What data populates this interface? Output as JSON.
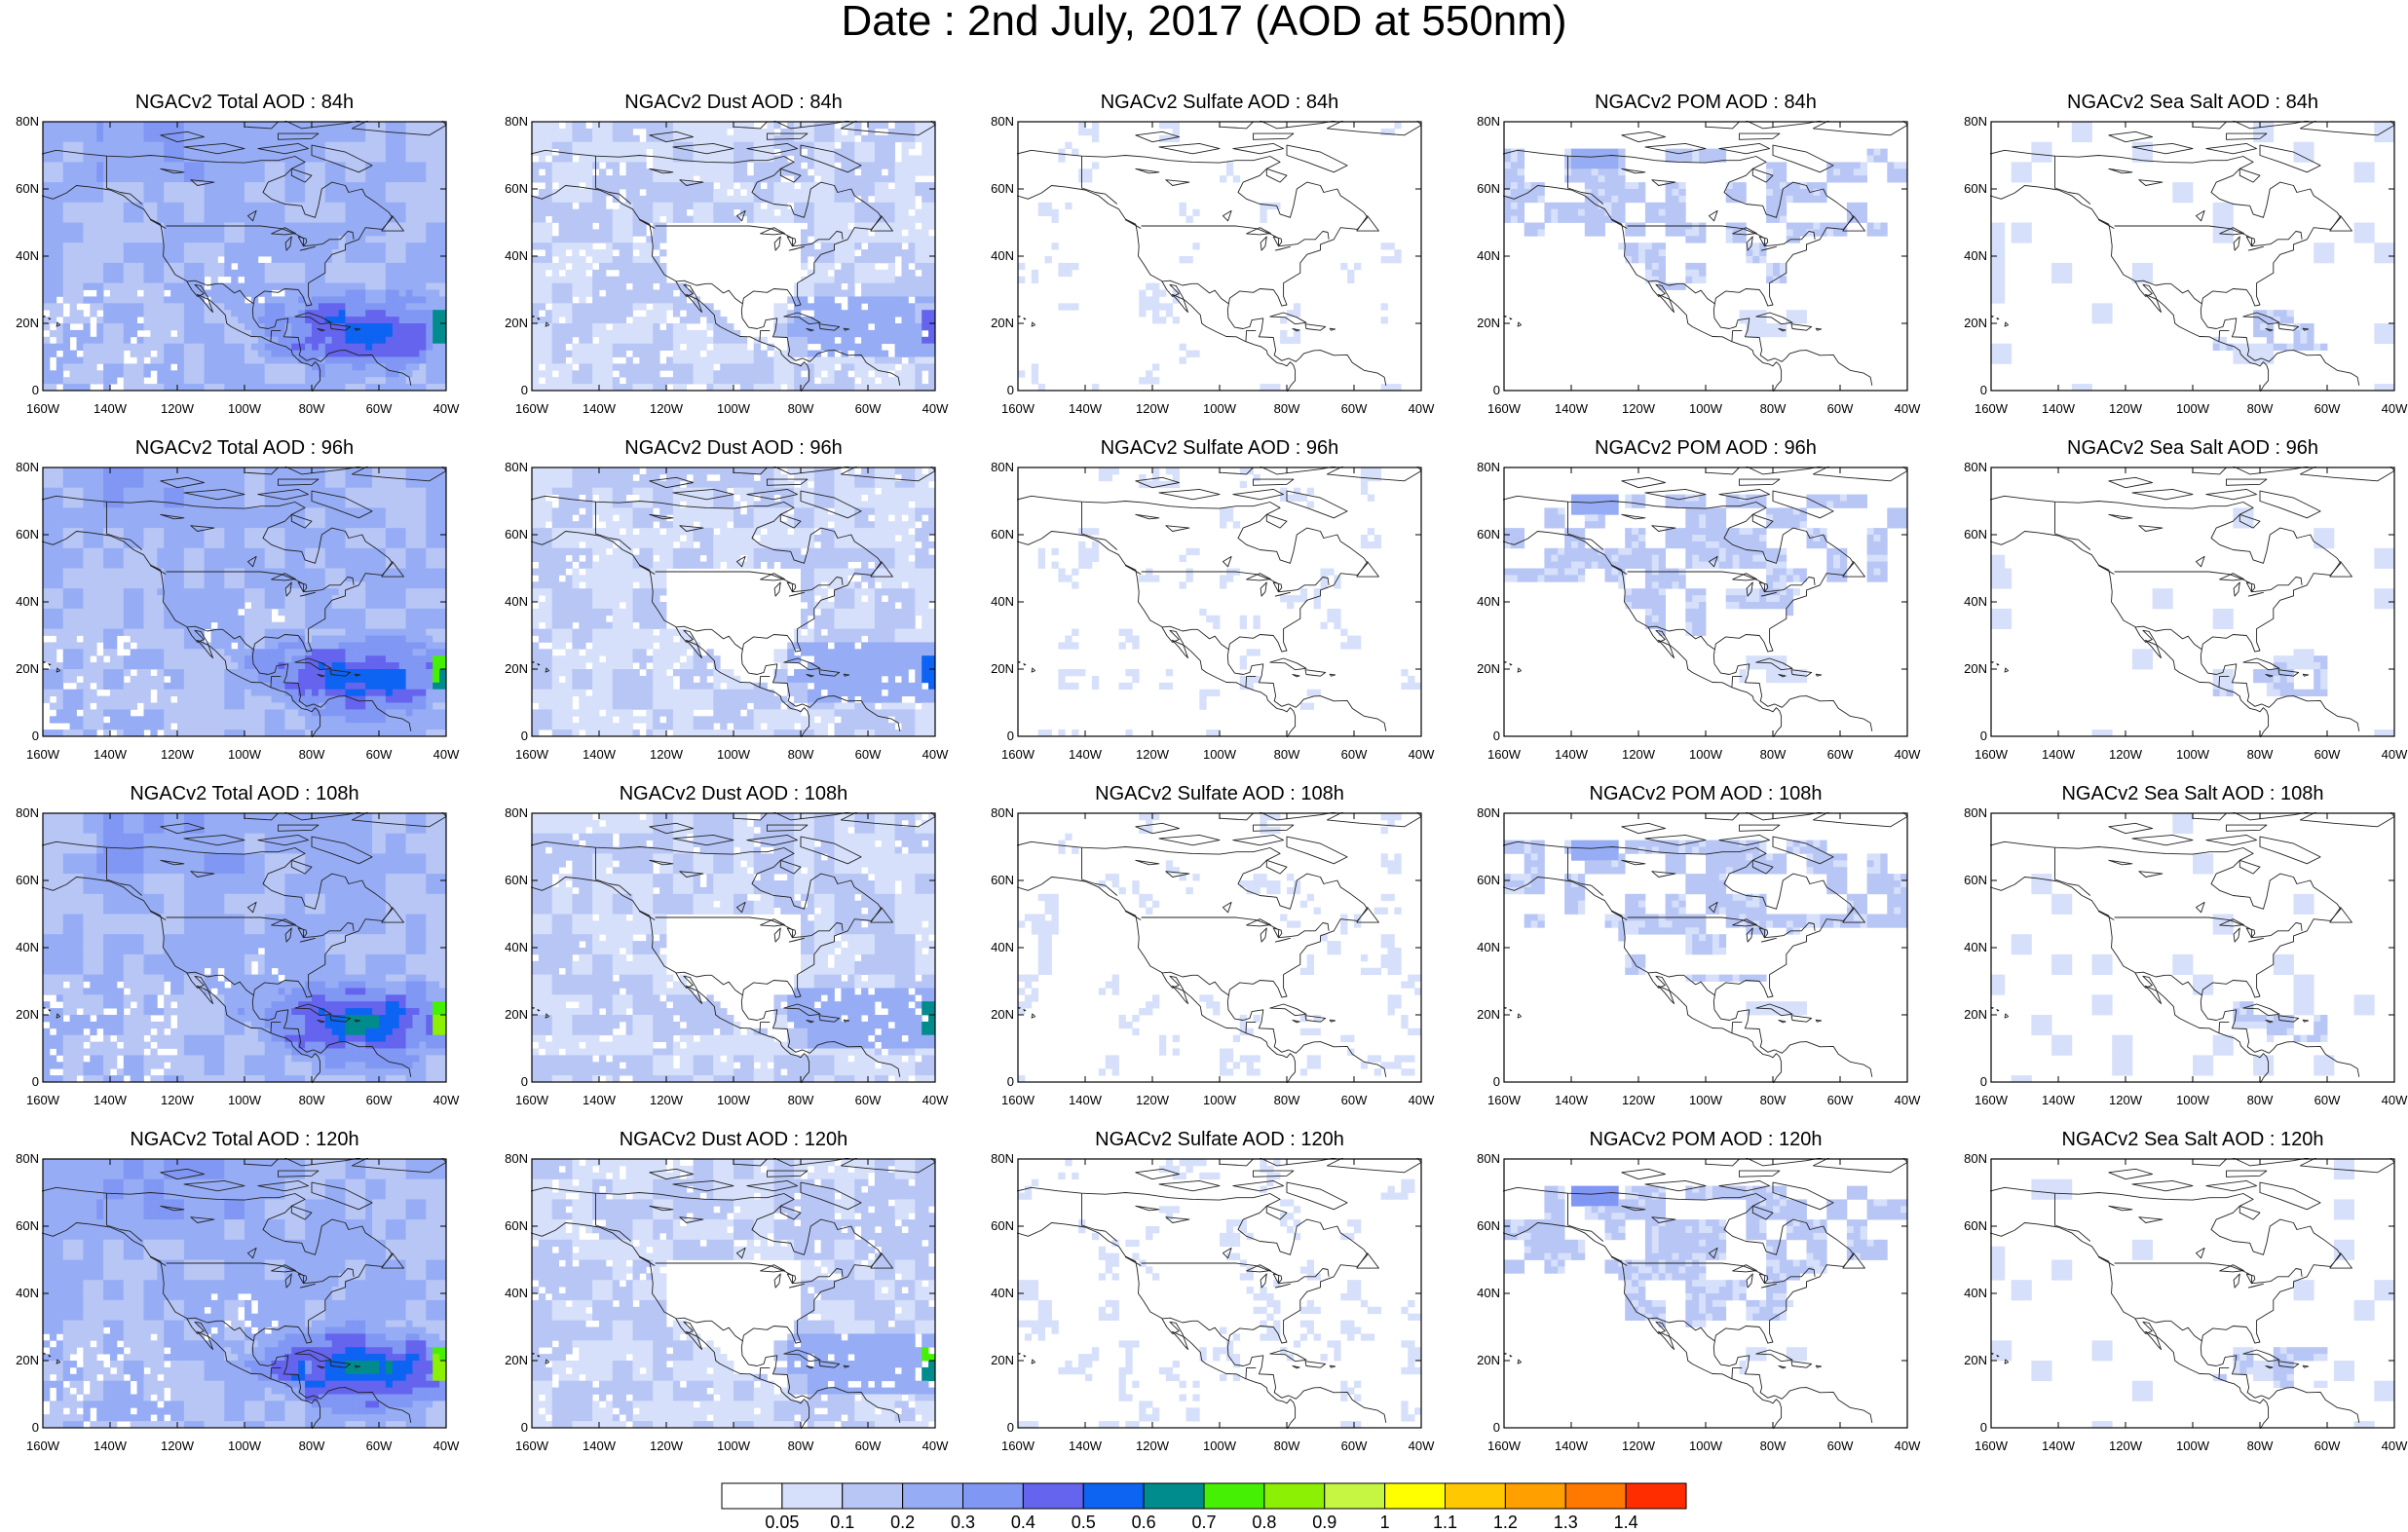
{
  "title": "Date : 2nd July, 2017 (AOD at 550nm)",
  "lat_labels": [
    "80N",
    "60N",
    "40N",
    "20N",
    "0"
  ],
  "lon_labels": [
    "160W",
    "140W",
    "120W",
    "100W",
    "80W",
    "60W",
    "40W"
  ],
  "panels": [
    {
      "title": "NGACv2 Total AOD : 84h",
      "type": "total",
      "level": 0.6
    },
    {
      "title": "NGACv2 Dust AOD : 84h",
      "type": "dust",
      "level": 0.5
    },
    {
      "title": "NGACv2 Sulfate AOD : 84h",
      "type": "sulfate",
      "level": 0.0
    },
    {
      "title": "NGACv2 POM AOD : 84h",
      "type": "pom",
      "level": 0.2
    },
    {
      "title": "NGACv2 Sea Salt AOD : 84h",
      "type": "seasalt",
      "level": 0.1
    },
    {
      "title": "NGACv2 Total AOD : 96h",
      "type": "total",
      "level": 0.7
    },
    {
      "title": "NGACv2 Dust AOD : 96h",
      "type": "dust",
      "level": 0.6
    },
    {
      "title": "NGACv2 Sulfate AOD : 96h",
      "type": "sulfate",
      "level": 0.0
    },
    {
      "title": "NGACv2 POM AOD : 96h",
      "type": "pom",
      "level": 0.3
    },
    {
      "title": "NGACv2 Sea Salt AOD : 96h",
      "type": "seasalt",
      "level": 0.1
    },
    {
      "title": "NGACv2 Total AOD : 108h",
      "type": "total",
      "level": 0.8
    },
    {
      "title": "NGACv2 Dust AOD : 108h",
      "type": "dust",
      "level": 0.7
    },
    {
      "title": "NGACv2 Sulfate AOD : 108h",
      "type": "sulfate",
      "level": 0.05
    },
    {
      "title": "NGACv2 POM AOD : 108h",
      "type": "pom",
      "level": 0.35
    },
    {
      "title": "NGACv2 Sea Salt AOD : 108h",
      "type": "seasalt",
      "level": 0.15
    },
    {
      "title": "NGACv2 Total AOD : 120h",
      "type": "total",
      "level": 0.9
    },
    {
      "title": "NGACv2 Dust AOD : 120h",
      "type": "dust",
      "level": 0.8
    },
    {
      "title": "NGACv2 Sulfate AOD : 120h",
      "type": "sulfate",
      "level": 0.08
    },
    {
      "title": "NGACv2 POM AOD : 120h",
      "type": "pom",
      "level": 0.4
    },
    {
      "title": "NGACv2 Sea Salt  AOD : 120h",
      "type": "seasalt",
      "level": 0.15
    }
  ],
  "colorbar": {
    "colors": [
      "#ffffff",
      "#d6e0fb",
      "#b8c6f6",
      "#96adf6",
      "#8197f4",
      "#6464ee",
      "#0d63f2",
      "#008c8c",
      "#46f005",
      "#8cf005",
      "#c6f542",
      "#ffff00",
      "#ffc800",
      "#ffa000",
      "#ff7800",
      "#ff2d00"
    ],
    "labels": [
      "0.05",
      "0.1",
      "0.2",
      "0.3",
      "0.4",
      "0.5",
      "0.6",
      "0.7",
      "0.8",
      "0.9",
      "1",
      "1.1",
      "1.2",
      "1.3",
      "1.4"
    ]
  }
}
